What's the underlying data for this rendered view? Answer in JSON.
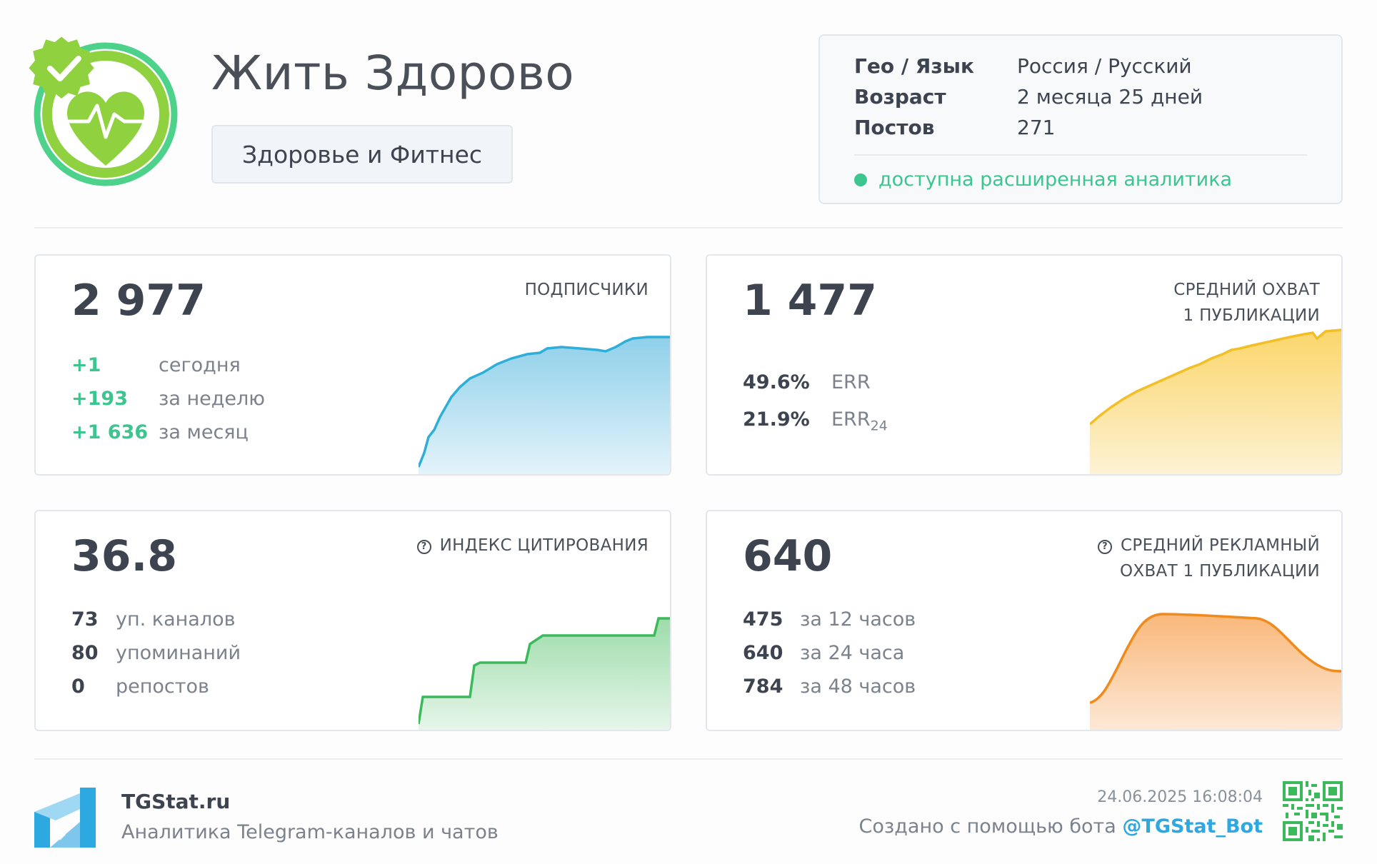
{
  "channel": {
    "title": "Жить Здорово",
    "category": "Здоровье и Фитнес"
  },
  "info": {
    "rows": [
      {
        "key": "Гео / Язык",
        "value": "Россия / Русский"
      },
      {
        "key": "Возраст",
        "value": "2 месяца 25 дней"
      },
      {
        "key": "Постов",
        "value": "271"
      }
    ],
    "analytics_badge": "доступна расширенная аналитика"
  },
  "cards": {
    "subscribers": {
      "value": "2 977",
      "label": "ПОДПИСЧИКИ",
      "rows": [
        {
          "num": "+1",
          "label": "сегодня"
        },
        {
          "num": "+193",
          "label": "за неделю"
        },
        {
          "num": "+1 636",
          "label": "за месяц"
        }
      ]
    },
    "reach": {
      "value": "1 477",
      "label_line1": "СРЕДНИЙ ОХВАТ",
      "label_line2": "1 ПУБЛИКАЦИИ",
      "rows": [
        {
          "num": "49.6%",
          "label": "ERR",
          "sub": ""
        },
        {
          "num": "21.9%",
          "label": "ERR",
          "sub": "24"
        }
      ]
    },
    "citation": {
      "value": "36.8",
      "label": "ИНДЕКС ЦИТИРОВАНИЯ",
      "rows": [
        {
          "num": "73",
          "label": "уп. каналов"
        },
        {
          "num": "80",
          "label": "упоминаний"
        },
        {
          "num": "0",
          "label": "репостов"
        }
      ]
    },
    "ad_reach": {
      "value": "640",
      "label_line1": "СРЕДНИЙ РЕКЛАМНЫЙ",
      "label_line2": "ОХВАТ 1 ПУБЛИКАЦИИ",
      "rows": [
        {
          "num": "475",
          "label": "за 12 часов"
        },
        {
          "num": "640",
          "label": "за 24 часа"
        },
        {
          "num": "784",
          "label": "за 48 часов"
        }
      ]
    }
  },
  "footer": {
    "brand": "TGStat.ru",
    "tagline": "Аналитика Telegram-каналов и чатов",
    "timestamp": "24.06.2025 16:08:04",
    "made_with": "Создано с помощью бота",
    "bot": "@TGStat_Bot"
  },
  "icons": {
    "logo": "heart-verified-icon",
    "question": "question-circle-icon",
    "brand_logo": "tgstat-logo-icon",
    "qr": "qr-code-icon"
  },
  "colors": {
    "green": "#3cc58f",
    "subscribers": "#2eaed8",
    "reach": "#f2bf26",
    "citation": "#3cb95b",
    "ad_reach": "#f08a1c",
    "bot_link": "#2ea8e0"
  }
}
